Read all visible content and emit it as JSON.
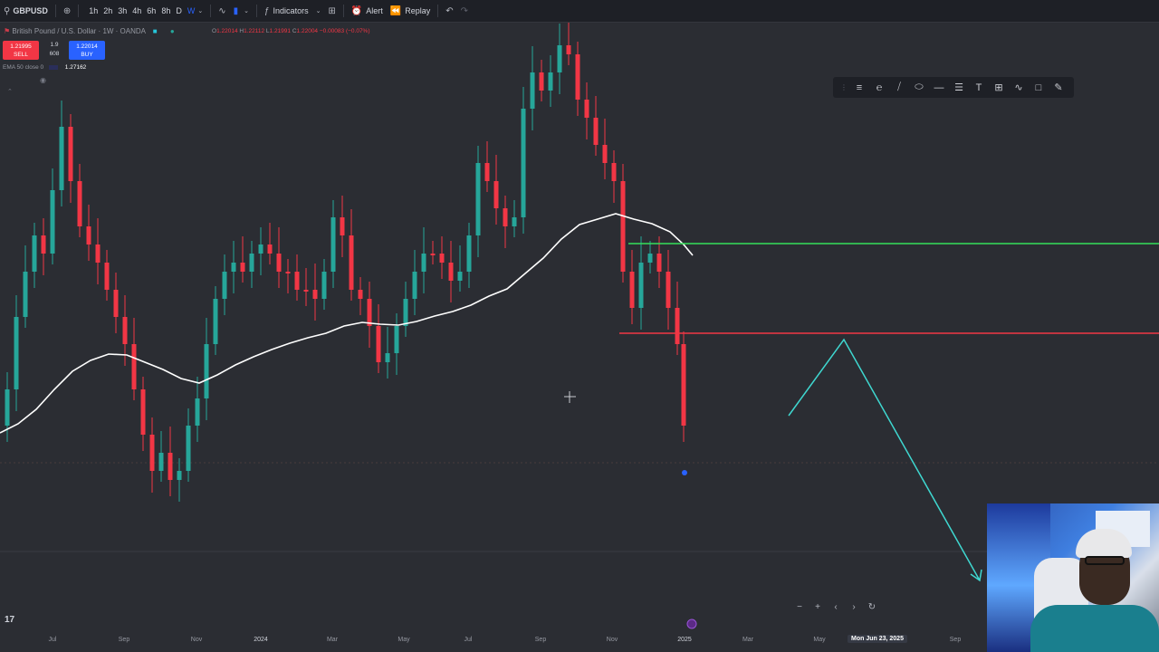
{
  "toolbar": {
    "symbol": "GBPUSD",
    "intervals": [
      "1h",
      "2h",
      "3h",
      "4h",
      "6h",
      "8h",
      "D",
      "W"
    ],
    "active_interval": "W",
    "indicators_label": "Indicators",
    "alert_label": "Alert",
    "replay_label": "Replay"
  },
  "legend": {
    "title": "British Pound / U.S. Dollar · 1W · OANDA",
    "ohlc": [
      {
        "k": "O",
        "v": "1.22014"
      },
      {
        "k": "H",
        "v": "1.22112"
      },
      {
        "k": "L",
        "v": "1.21991"
      },
      {
        "k": "C",
        "v": "1.22004 −0.00083 (−0.07%)"
      }
    ],
    "sell_price": "1.21995",
    "sell_label": "SELL",
    "spread_top": "1.9",
    "spread_value": "608",
    "buy_price": "1.22014",
    "buy_label": "BUY",
    "ema_label": "EMA 50 close 0",
    "ema_value": "1.27162"
  },
  "drawing_tools": [
    "fib-tool-icon",
    "text-cursor-icon",
    "trend-line-icon",
    "ellipse-icon",
    "ray-icon",
    "parallel-channel-icon",
    "text-icon",
    "pitchfork-icon",
    "path-icon",
    "rectangle-icon",
    "brush-icon"
  ],
  "time_axis": {
    "labels": [
      {
        "t": "Jul",
        "x": 58
      },
      {
        "t": "Sep",
        "x": 137
      },
      {
        "t": "Nov",
        "x": 217
      },
      {
        "t": "2024",
        "x": 288,
        "bold": true
      },
      {
        "t": "Mar",
        "x": 367
      },
      {
        "t": "May",
        "x": 446
      },
      {
        "t": "Jul",
        "x": 517
      },
      {
        "t": "Sep",
        "x": 597
      },
      {
        "t": "Nov",
        "x": 676
      },
      {
        "t": "2025",
        "x": 756,
        "bold": true
      },
      {
        "t": "Mar",
        "x": 826
      },
      {
        "t": "May",
        "x": 905
      },
      {
        "t": "Sep",
        "x": 1055
      }
    ],
    "crosshair_label": "Mon Jun 23, 2025"
  },
  "colors": {
    "up": "#26a69a",
    "down": "#f23645",
    "ema": "#ffffff",
    "resistance": "#35e05a",
    "support": "#f23645",
    "projection": "#3fd7d0"
  },
  "tv_logo": "17"
}
